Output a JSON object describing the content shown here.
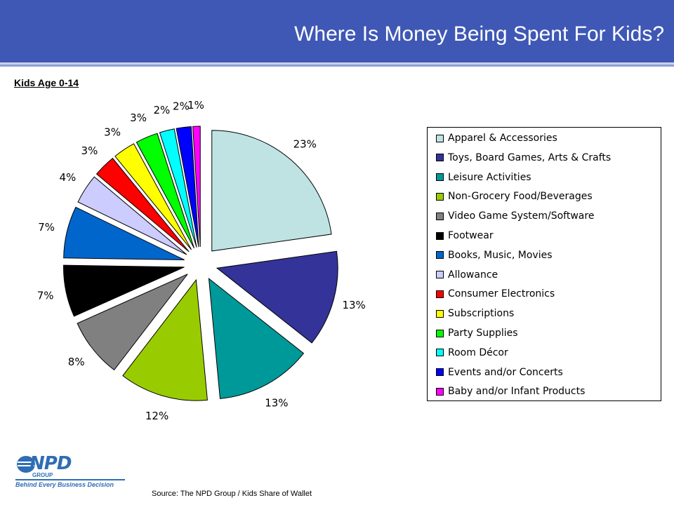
{
  "header": {
    "title": "Where Is Money Being Spent For Kids?"
  },
  "subtitle": "Kids Age 0-14",
  "chart_data": {
    "type": "pie",
    "categories": [
      "Apparel & Accessories",
      "Toys, Board Games, Arts & Crafts",
      "Leisure Activities",
      "Non-Grocery Food/Beverages",
      "Video Game System/Software",
      "Footwear",
      "Books, Music, Movies",
      "Allowance",
      "Consumer Electronics",
      "Subscriptions",
      "Party Supplies",
      "Room Décor",
      "Events and/or Concerts",
      "Baby and/or Infant Products"
    ],
    "values": [
      23,
      13,
      13,
      12,
      8,
      7,
      7,
      4,
      3,
      3,
      3,
      2,
      2,
      1
    ],
    "labels": [
      "23%",
      "13%",
      "13%",
      "12%",
      "8%",
      "7%",
      "7%",
      "4%",
      "3%",
      "3%",
      "3%",
      "2%",
      "2%",
      "1%"
    ],
    "colors": [
      "#bfe3e3",
      "#333399",
      "#009999",
      "#99cc00",
      "#808080",
      "#000000",
      "#0066cc",
      "#ccccff",
      "#ff0000",
      "#ffff00",
      "#00ff00",
      "#00ffff",
      "#0000ff",
      "#ff00ff"
    ],
    "exploded": true,
    "legend_position": "right"
  },
  "logo": {
    "brand": "NPD",
    "group": "GROUP",
    "tagline": "Behind Every Business Decision"
  },
  "source": "Source:  The NPD Group / Kids Share of Wallet"
}
